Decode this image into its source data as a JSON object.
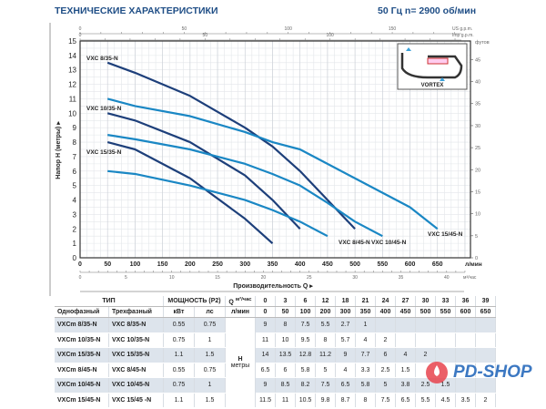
{
  "header": {
    "title": "ТЕХНИЧЕСКИЕ  ХАРАКТЕРИСТИКИ",
    "speed": "50 Гц  n= 2900 об/мин"
  },
  "chart_data": {
    "type": "line",
    "xlabel": "Производительность  Q",
    "ylabel": "Напор H (метры)",
    "x_unit": "л/мин",
    "x2_unit": "м³/час",
    "top1_unit": "US g.p.m.",
    "top2_unit": "Imp g.p.m.",
    "right_unit": "футов",
    "xlim": [
      0,
      710
    ],
    "ylim": [
      0,
      15
    ],
    "x_ticks": [
      0,
      50,
      100,
      150,
      200,
      250,
      300,
      350,
      400,
      450,
      500,
      550,
      600,
      650
    ],
    "y_ticks": [
      0,
      1,
      2,
      3,
      4,
      5,
      6,
      7,
      8,
      9,
      10,
      11,
      12,
      13,
      14,
      15
    ],
    "m3h_ticks": [
      0,
      5,
      10,
      15,
      20,
      25,
      30,
      35,
      40
    ],
    "us_ticks": [
      0,
      50,
      100,
      150
    ],
    "imp_ticks": [
      0,
      50,
      100
    ],
    "feet_ticks": [
      0,
      5,
      10,
      15,
      20,
      25,
      30,
      35,
      40,
      45
    ],
    "grid": true,
    "x": [
      50,
      100,
      200,
      300,
      350,
      400,
      450,
      500,
      550,
      600,
      650
    ],
    "series": [
      {
        "name": "VXC 8/35-N",
        "color": "#1d3f7a",
        "values": [
          8,
          7.5,
          5.5,
          2.7,
          1,
          null,
          null,
          null,
          null,
          null,
          null
        ]
      },
      {
        "name": "VXC 10/35-N",
        "color": "#1d3f7a",
        "values": [
          10,
          9.5,
          8,
          5.7,
          4,
          2,
          null,
          null,
          null,
          null,
          null
        ]
      },
      {
        "name": "VXC 15/35-N",
        "color": "#1d3f7a",
        "values": [
          13.5,
          12.8,
          11.2,
          9,
          7.7,
          6,
          4,
          2,
          null,
          null,
          null
        ]
      },
      {
        "name": "VXC 8/45-N",
        "color": "#1a87c4",
        "values": [
          6,
          5.8,
          5,
          4,
          3.3,
          2.5,
          1.5,
          null,
          null,
          null,
          null
        ]
      },
      {
        "name": "VXC 10/45-N",
        "color": "#1a87c4",
        "values": [
          8.5,
          8.2,
          7.5,
          6.5,
          5.8,
          5,
          3.8,
          2.5,
          1.5,
          null,
          null
        ]
      },
      {
        "name": "VXC 15/45-N",
        "color": "#1a87c4",
        "values": [
          11,
          10.5,
          9.8,
          8.7,
          8,
          7.5,
          6.5,
          5.5,
          4.5,
          3.5,
          2
        ]
      }
    ],
    "inset_label": "VORTEX"
  },
  "table": {
    "type": "ТИП",
    "power": "МОЩНОСТЬ (P2)",
    "single": "Однофазный",
    "three": "Трехфазный",
    "kw": "кВт",
    "hp": "лс",
    "q": "Q",
    "m3h": "м³/час",
    "lmin": "л/мин",
    "h": "H",
    "h_unit": "метры",
    "q_m3h": [
      "0",
      "3",
      "6",
      "12",
      "18",
      "21",
      "24",
      "27",
      "30",
      "33",
      "36",
      "39"
    ],
    "q_lmin": [
      "0",
      "50",
      "100",
      "200",
      "300",
      "350",
      "400",
      "450",
      "500",
      "550",
      "600",
      "650"
    ],
    "rows": [
      {
        "single": "VXCm 8/35-N",
        "three": "VXC 8/35-N",
        "kw": "0.55",
        "hp": "0.75",
        "h": [
          "9",
          "8",
          "7.5",
          "5.5",
          "2.7",
          "1",
          "",
          "",
          "",
          "",
          "",
          ""
        ]
      },
      {
        "single": "VXCm 10/35-N",
        "three": "VXC 10/35-N",
        "kw": "0.75",
        "hp": "1",
        "h": [
          "11",
          "10",
          "9.5",
          "8",
          "5.7",
          "4",
          "2",
          "",
          "",
          "",
          "",
          ""
        ]
      },
      {
        "single": "VXCm 15/35-N",
        "three": "VXC 15/35-N",
        "kw": "1.1",
        "hp": "1.5",
        "h": [
          "14",
          "13.5",
          "12.8",
          "11.2",
          "9",
          "7.7",
          "6",
          "4",
          "2",
          "",
          "",
          ""
        ]
      },
      {
        "single": "VXCm 8/45-N",
        "three": "VXC 8/45-N",
        "kw": "0.55",
        "hp": "0.75",
        "h": [
          "6.5",
          "6",
          "5.8",
          "5",
          "4",
          "3.3",
          "2.5",
          "1.5",
          "",
          "",
          "",
          ""
        ]
      },
      {
        "single": "VXCm 10/45-N",
        "three": "VXC 10/45-N",
        "kw": "0.75",
        "hp": "1",
        "h": [
          "9",
          "8.5",
          "8.2",
          "7.5",
          "6.5",
          "5.8",
          "5",
          "3.8",
          "2.5",
          "1.5",
          "",
          ""
        ]
      },
      {
        "single": "VXCm 15/45-N",
        "three": "VXC 15/45 -N",
        "kw": "1.1",
        "hp": "1.5",
        "h": [
          "11.5",
          "11",
          "10.5",
          "9.8",
          "8.7",
          "8",
          "7.5",
          "6.5",
          "5.5",
          "4.5",
          "3.5",
          "2"
        ]
      }
    ]
  },
  "logo": {
    "text": "PD-SHOP"
  }
}
